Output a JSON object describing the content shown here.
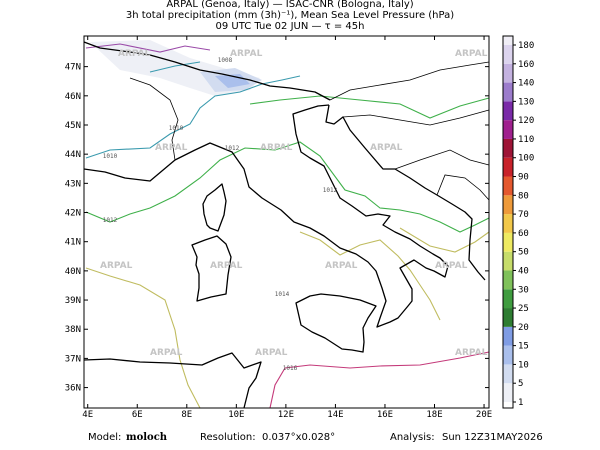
{
  "header": {
    "line1": "ARPAL (Genoa, Italy)  —  ISAC-CNR (Bologna, Italy)",
    "line2": "3h total precipitation (mm (3h)⁻¹), Mean Sea Level Pressure (hPa)",
    "line3": "09 UTC Tue 02 JUN  —  τ = 45h"
  },
  "map": {
    "xlim": [
      3.85,
      20.2
    ],
    "ylim": [
      35.3,
      48.05
    ],
    "xticks": [
      {
        "value": 4,
        "label": "4E"
      },
      {
        "value": 6,
        "label": "6E"
      },
      {
        "value": 8,
        "label": "8E"
      },
      {
        "value": 10,
        "label": "10E"
      },
      {
        "value": 12,
        "label": "12E"
      },
      {
        "value": 14,
        "label": "14E"
      },
      {
        "value": 16,
        "label": "16E"
      },
      {
        "value": 18,
        "label": "18E"
      },
      {
        "value": 20,
        "label": "20E"
      }
    ],
    "yticks": [
      {
        "value": 36,
        "label": "36N"
      },
      {
        "value": 37,
        "label": "37N"
      },
      {
        "value": 38,
        "label": "38N"
      },
      {
        "value": 39,
        "label": "39N"
      },
      {
        "value": 40,
        "label": "40N"
      },
      {
        "value": 41,
        "label": "41N"
      },
      {
        "value": 42,
        "label": "42N"
      },
      {
        "value": 43,
        "label": "43N"
      },
      {
        "value": 44,
        "label": "44N"
      },
      {
        "value": 45,
        "label": "45N"
      },
      {
        "value": 46,
        "label": "46N"
      },
      {
        "value": 47,
        "label": "47N"
      }
    ],
    "watermark": "ARPAL",
    "isobar_labels": [
      "1008",
      "1010",
      "1010",
      "1012",
      "1012",
      "1012",
      "1014",
      "1016"
    ]
  },
  "colorbar": {
    "levels": [
      1,
      5,
      10,
      15,
      20,
      25,
      30,
      40,
      50,
      60,
      70,
      80,
      90,
      100,
      110,
      120,
      130,
      140,
      160,
      180
    ],
    "colors": [
      "#eef0f6",
      "#d2dcf0",
      "#aabfec",
      "#7f9ce4",
      "#2e7d32",
      "#3f9c3f",
      "#7fc15a",
      "#c6dc6a",
      "#eeea62",
      "#f2c84a",
      "#ee9a3a",
      "#e4582e",
      "#c8222a",
      "#9e1436",
      "#a0208e",
      "#7a2aa8",
      "#9c7ccc",
      "#c4b2e0",
      "#dcd4ee",
      "#f0eef6"
    ]
  },
  "footer": {
    "model_label": "Model:",
    "model": "moloch",
    "resolution_label": "Resolution:",
    "resolution": "0.037°x0.028°",
    "analysis_label": "Analysis:",
    "analysis": "Sun 12Z31MAY2026"
  }
}
